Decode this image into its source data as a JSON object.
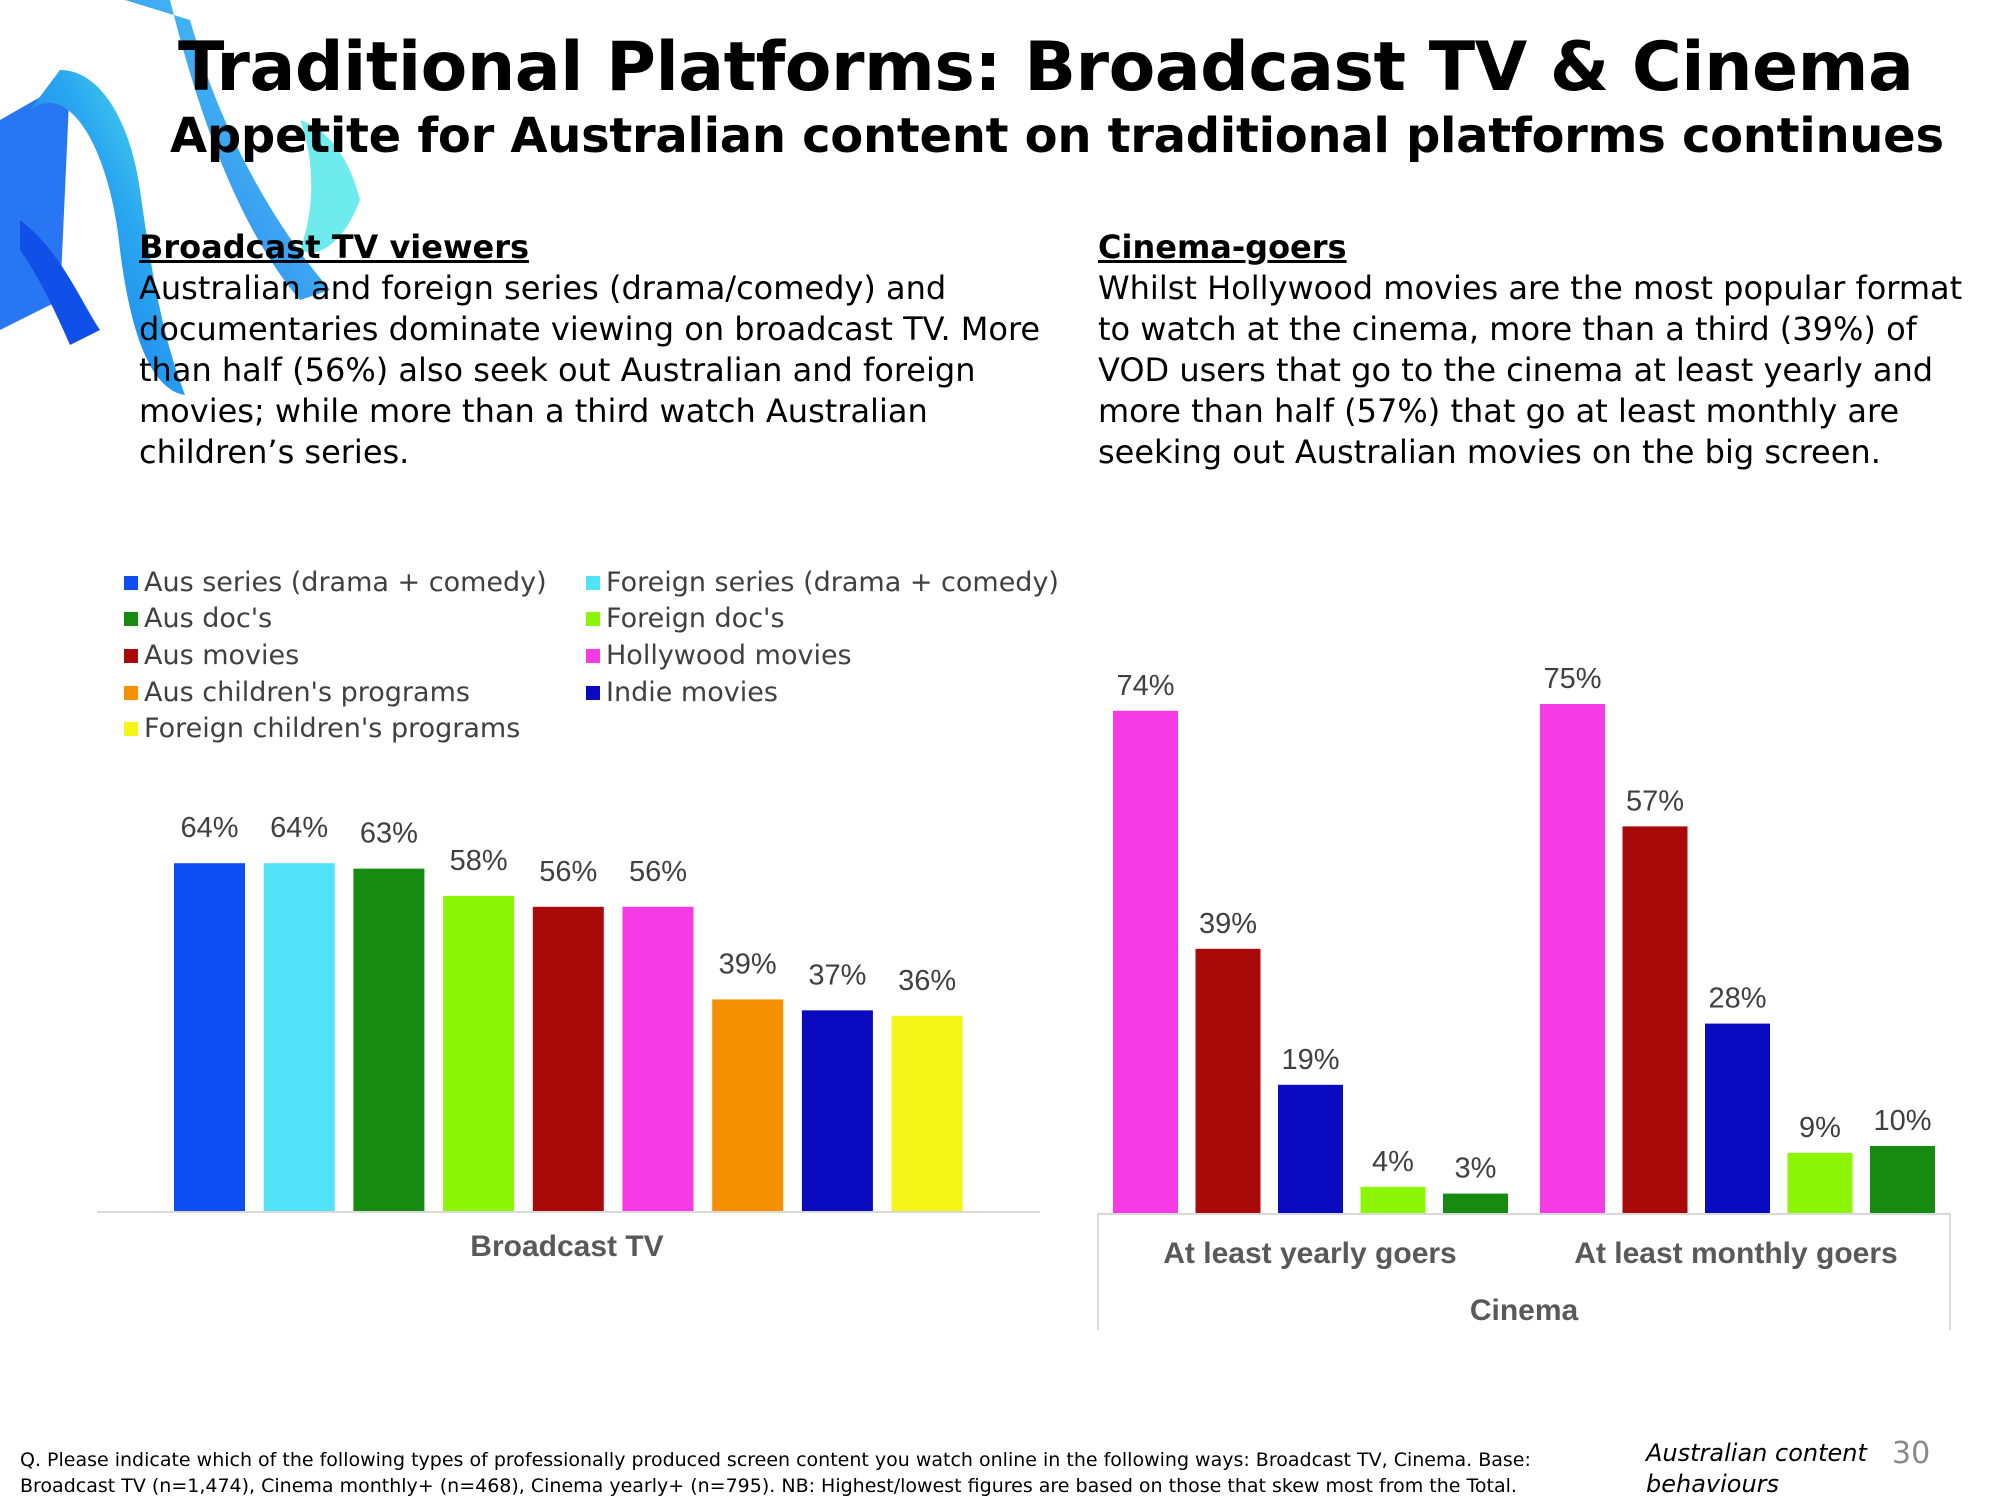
{
  "title": "Traditional Platforms: Broadcast TV & Cinema",
  "subtitle": "Appetite for Australian content on traditional platforms continues",
  "broadcast_section": {
    "heading": "Broadcast TV viewers",
    "lines": [
      "Australian and foreign series (drama/comedy) and",
      "documentaries dominate viewing on broadcast TV. More",
      "than half (56%) also seek out Australian and foreign",
      "movies; while more than a third watch Australian",
      "children’s series."
    ]
  },
  "cinema_section": {
    "heading": "Cinema-goers",
    "lines": [
      "Whilst Hollywood movies are the most popular format",
      "to watch at the cinema, more than a third (39%) of",
      "VOD users that go to the cinema at least yearly and",
      "more than half (57%) that go at least monthly are",
      "seeking out Australian movies on the big screen."
    ]
  },
  "legend": [
    {
      "label": "Aus series (drama + comedy)",
      "color": "#0f4ef5"
    },
    {
      "label": "Foreign series (drama + comedy)",
      "color": "#52e3f8"
    },
    {
      "label": "Aus doc's",
      "color": "#178a12"
    },
    {
      "label": "Foreign doc's",
      "color": "#8cf508"
    },
    {
      "label": "Aus movies",
      "color": "#a80a0a"
    },
    {
      "label": "Hollywood movies",
      "color": "#f53ae6"
    },
    {
      "label": "Aus children's programs",
      "color": "#f59000"
    },
    {
      "label": "Indie movies",
      "color": "#0a0ac0"
    },
    {
      "label": "Foreign children's programs",
      "color": "#f5f518"
    }
  ],
  "chart_data": [
    {
      "type": "bar",
      "xlabel": "Broadcast TV",
      "ylim": [
        0,
        80
      ],
      "categories": [
        "Aus series (drama + comedy)",
        "Foreign series (drama + comedy)",
        "Aus doc's",
        "Foreign doc's",
        "Aus movies",
        "Hollywood movies",
        "Aus children's programs",
        "Indie movies",
        "Foreign children's programs"
      ],
      "values": [
        64,
        64,
        63,
        58,
        56,
        56,
        39,
        37,
        36
      ],
      "labels": [
        "64%",
        "64%",
        "63%",
        "58%",
        "56%",
        "56%",
        "39%",
        "37%",
        "36%"
      ],
      "colors": [
        "#0f4ef5",
        "#52e3f8",
        "#178a12",
        "#8cf508",
        "#a80a0a",
        "#f53ae6",
        "#f59000",
        "#0a0ac0",
        "#f5f518"
      ]
    },
    {
      "type": "bar",
      "xlabel": "Cinema",
      "ylim": [
        0,
        80
      ],
      "groups": [
        {
          "label": "At least yearly goers",
          "series": [
            "Hollywood movies",
            "Aus movies",
            "Indie movies",
            "Foreign doc's",
            "Aus doc's"
          ],
          "values": [
            74,
            39,
            19,
            4,
            3
          ],
          "labels": [
            "74%",
            "39%",
            "19%",
            "4%",
            "3%"
          ],
          "colors": [
            "#f53ae6",
            "#a80a0a",
            "#0a0ac0",
            "#8cf508",
            "#178a12"
          ]
        },
        {
          "label": "At least monthly goers",
          "series": [
            "Hollywood movies",
            "Aus movies",
            "Indie movies",
            "Foreign doc's",
            "Aus doc's"
          ],
          "values": [
            75,
            57,
            28,
            9,
            10
          ],
          "labels": [
            "75%",
            "57%",
            "28%",
            "9%",
            "10%"
          ],
          "colors": [
            "#f53ae6",
            "#a80a0a",
            "#0a0ac0",
            "#8cf508",
            "#178a12"
          ]
        }
      ]
    }
  ],
  "footnote": [
    "Q. Please indicate which of the following types of professionally produced screen content you watch online in the following ways: Broadcast TV, Cinema. Base:",
    "Broadcast TV (n=1,474), Cinema monthly+ (n=468), Cinema yearly+ (n=795). NB: Highest/lowest figures are based on those that skew most from the Total."
  ],
  "brand": [
    "Australian content",
    "behaviours"
  ],
  "page_number": "30"
}
